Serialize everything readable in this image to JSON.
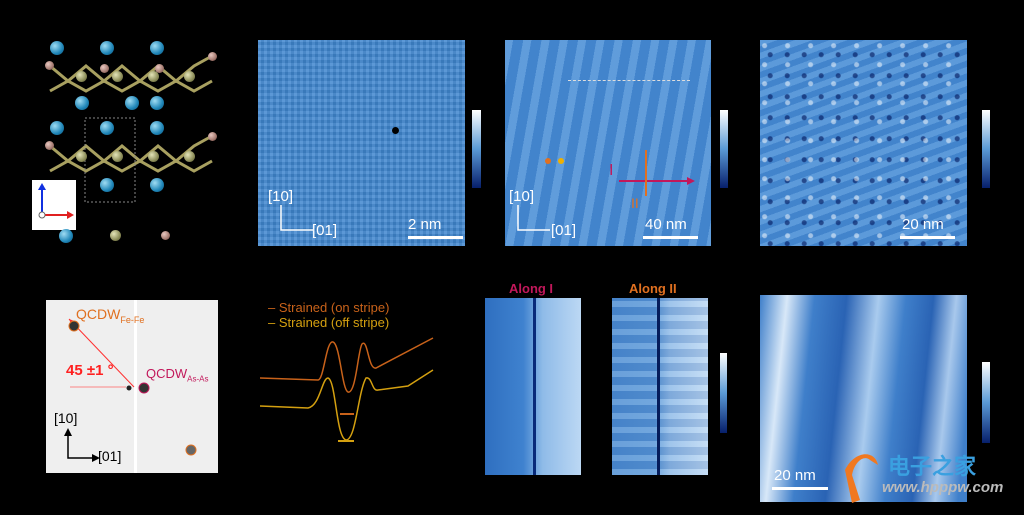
{
  "panel_a": {
    "axes_legend": "crystal-axes",
    "atoms": [
      "As",
      "Fe",
      "Se"
    ]
  },
  "panel_b": {
    "dir_vertical": "[10]",
    "dir_horizontal": "[01]",
    "scale": "2 nm"
  },
  "panel_c": {
    "dir_vertical": "[10]",
    "dir_horizontal": "[01]",
    "scale": "40 nm",
    "line_I": "I",
    "line_II": "II",
    "colors": {
      "I": "#c2185b",
      "II": "#e07020",
      "dot1": "#e07020",
      "dot2": "#f0b000"
    }
  },
  "panel_d": {
    "scale": "20 nm"
  },
  "panel_e": {
    "qcdw_fefe": "QCDW",
    "qcdw_fefe_sub": "Fe-Fe",
    "qcdw_asas": "QCDW",
    "qcdw_asas_sub": "As-As",
    "angle": "45 ±1 °",
    "dir_vertical": "[10]",
    "dir_horizontal": "[01]"
  },
  "panel_f": {
    "legend": [
      {
        "label": "Strained (on stripe)",
        "color": "#c8621a"
      },
      {
        "label": "Strained (off stripe)",
        "color": "#d4a010"
      }
    ]
  },
  "panel_g": {
    "title_I": "Along I",
    "title_II": "Along II"
  },
  "panel_h": {
    "scale": "20 nm"
  },
  "watermark": {
    "text": "电子之家",
    "url": "www.hpppw.com"
  }
}
